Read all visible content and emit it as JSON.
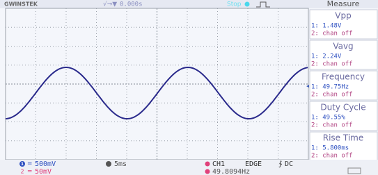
{
  "header": {
    "brand": "GWINSTEK",
    "trigger_time": "0.000s",
    "status": "Stop",
    "panel_title": "Measure"
  },
  "measurements": [
    {
      "label": "Vpp",
      "ch1": "1: 1.48V",
      "ch2": "2: chan off"
    },
    {
      "label": "Vavg",
      "ch1": "1: 2.24V",
      "ch2": "2: chan off"
    },
    {
      "label": "Frequency",
      "ch1": "1: 49.75Hz",
      "ch2": "2: chan off"
    },
    {
      "label": "Duty Cycle",
      "ch1": "1: 49.55%",
      "ch2": "2: chan off"
    },
    {
      "label": "Rise Time",
      "ch1": "1: 5.800ms",
      "ch2": "2: chan off"
    }
  ],
  "footer": {
    "ch1": "1",
    "ch1_scale": "500mV",
    "ch2": "2",
    "ch2_scale": "50mV",
    "timebase": "5ms",
    "trigger_source": "CH1",
    "trigger_type": "EDGE",
    "coupling": "DC",
    "frequency": "49.8094Hz"
  }
}
